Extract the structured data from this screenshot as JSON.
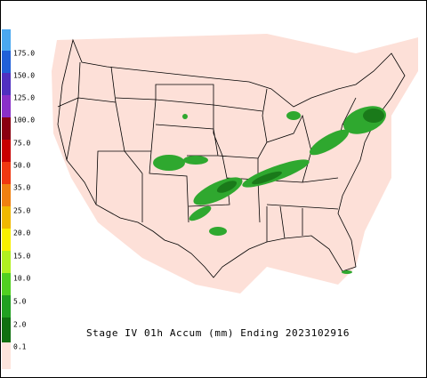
{
  "legend": {
    "labels": [
      "175.0",
      "150.0",
      "125.0",
      "100.0",
      "75.0",
      "50.0",
      "35.0",
      "25.0",
      "20.0",
      "15.0",
      "10.0",
      "5.0",
      "2.0",
      "0.1"
    ]
  },
  "caption": "Stage IV 01h Accum (mm) Ending 2023102916"
}
